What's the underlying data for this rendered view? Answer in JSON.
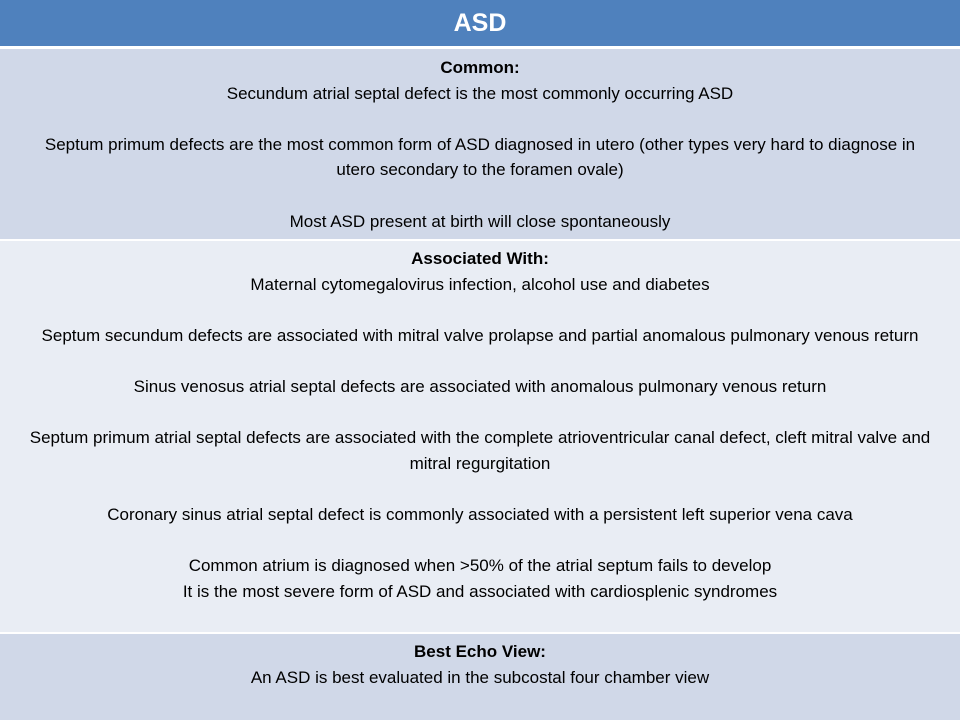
{
  "title": "ASD",
  "common": {
    "heading": "Common:",
    "p1": "Secundum atrial septal defect is the most commonly occurring ASD",
    "p2": "Septum primum defects are the most common form of ASD diagnosed in utero (other types very hard to diagnose in utero secondary to the foramen ovale)",
    "p3": "Most ASD present at birth will close spontaneously"
  },
  "associated": {
    "heading": "Associated With:",
    "p1": "Maternal cytomegalovirus infection, alcohol use and diabetes",
    "p2": "Septum secundum defects are associated with mitral valve prolapse and partial anomalous pulmonary venous return",
    "p3": "Sinus venosus atrial septal defects are associated with anomalous pulmonary venous return",
    "p4": "Septum primum atrial septal defects are associated with the complete atrioventricular canal defect, cleft mitral valve and mitral regurgitation",
    "p5": "Coronary sinus atrial septal defect is commonly associated with a persistent left superior vena cava",
    "p6a": "Common atrium is diagnosed when >50% of the atrial septum fails to develop",
    "p6b": "It is the most severe form of ASD and associated with cardiosplenic syndromes"
  },
  "echo": {
    "heading": "Best Echo View:",
    "p1": "An ASD is best evaluated in the subcostal four chamber view"
  }
}
